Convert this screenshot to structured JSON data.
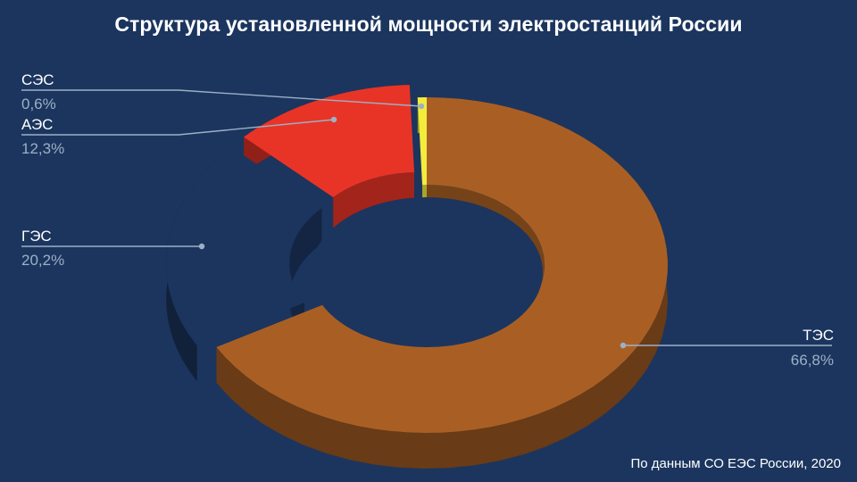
{
  "chart_data": {
    "type": "pie",
    "style": "3d-donut",
    "title": "Структура установленной мощности электростанций России",
    "source": "По данным СО ЕЭС России, 2020",
    "slices": [
      {
        "name": "ТЭС",
        "value": 66.8,
        "label": "66,8%",
        "color": "#a95f24",
        "exploded": false
      },
      {
        "name": "ГЭС",
        "value": 20.2,
        "label": "20,2%",
        "color": "#1b355e",
        "exploded": true
      },
      {
        "name": "АЭС",
        "value": 12.3,
        "label": "12,3%",
        "color": "#e83426",
        "exploded": true
      },
      {
        "name": "СЭС",
        "value": 0.6,
        "label": "0,6%",
        "color": "#f3ec3c",
        "exploded": false
      }
    ]
  }
}
